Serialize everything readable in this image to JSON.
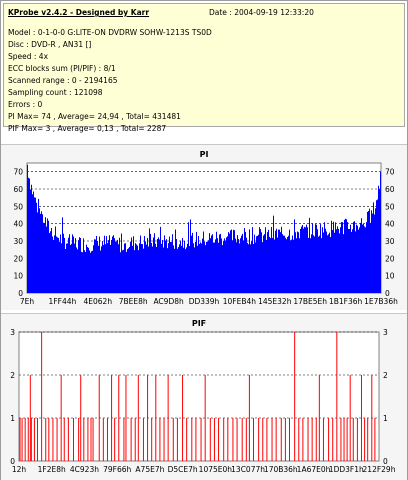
{
  "info": {
    "title": "KProbe v2.4.2 - Designed by Karr",
    "date": "Date : 2004-09-19 12:33:20",
    "lines": [
      "Model : 0-1-0-0 G:LITE-ON DVDRW SOHW-1213S TS0D",
      "Disc : DVD-R , AN31 []",
      "Speed : 4x",
      "ECC blocks sum (PI/PIF) : 8/1",
      "Scanned range : 0 - 2194165",
      "Sampling count : 121098",
      "Errors : 0",
      "PI Max= 74 , Average= 24,94 , Total= 431481",
      "PIF Max= 3 , Average= 0,13 , Total= 2287"
    ]
  },
  "colors": {
    "pi": "#0000ff",
    "pif": "#ff0000",
    "grid": "#000000",
    "plot_bg": "#ffffff",
    "panel_bg": "#f5f5f5"
  },
  "chart_data": [
    {
      "type": "area",
      "title": "PI",
      "ylim": [
        0,
        75
      ],
      "yticks": [
        0,
        10,
        20,
        30,
        40,
        50,
        60,
        70
      ],
      "xtick_labels": [
        "7Eh",
        "1FF44h",
        "4E062h",
        "7BEE8h",
        "AC9D8h",
        "DD339h",
        "10FEB4h",
        "145E32h",
        "17BE5Eh",
        "1B1F36h",
        "1E7B36h"
      ],
      "grid": true,
      "profile": [
        [
          0,
          74
        ],
        [
          2,
          66
        ],
        [
          5,
          58
        ],
        [
          9,
          50
        ],
        [
          14,
          44
        ],
        [
          19,
          38
        ],
        [
          25,
          34
        ],
        [
          31,
          31
        ],
        [
          40,
          29
        ],
        [
          55,
          28
        ],
        [
          70,
          29
        ],
        [
          85,
          28
        ],
        [
          100,
          29
        ],
        [
          120,
          30
        ],
        [
          140,
          30
        ],
        [
          160,
          31
        ],
        [
          180,
          32
        ],
        [
          200,
          33
        ],
        [
          215,
          33
        ],
        [
          230,
          34
        ],
        [
          245,
          35
        ],
        [
          260,
          36
        ],
        [
          275,
          37
        ],
        [
          290,
          38
        ],
        [
          300,
          39
        ],
        [
          310,
          41
        ],
        [
          316,
          45
        ],
        [
          320,
          52
        ],
        [
          323,
          62
        ],
        [
          324,
          68
        ]
      ],
      "summary": {
        "max": 74,
        "average": 24.94,
        "total": 431481
      }
    },
    {
      "type": "bar",
      "title": "PIF",
      "ylim": [
        0,
        3
      ],
      "yticks": [
        0,
        1,
        2,
        3
      ],
      "xtick_labels": [
        "12h",
        "1F2E8h",
        "4C923h",
        "79F66h",
        "A75E7h",
        "D5CE7h",
        "1075E0h",
        "13C077h",
        "170B36h",
        "1A67E0h",
        "1DD3F1h",
        "212F29h"
      ],
      "grid": true,
      "spikes": [
        {
          "x": 1,
          "value": 1
        },
        {
          "x": 3,
          "value": 1
        },
        {
          "x": 6,
          "value": 1
        },
        {
          "x": 9,
          "value": 1
        },
        {
          "x": 11,
          "value": 2
        },
        {
          "x": 12,
          "value": 1
        },
        {
          "x": 15,
          "value": 1
        },
        {
          "x": 18,
          "value": 1
        },
        {
          "x": 22,
          "value": 3
        },
        {
          "x": 26,
          "value": 1
        },
        {
          "x": 29,
          "value": 1
        },
        {
          "x": 33,
          "value": 1
        },
        {
          "x": 37,
          "value": 1
        },
        {
          "x": 41,
          "value": 2
        },
        {
          "x": 44,
          "value": 1
        },
        {
          "x": 48,
          "value": 1
        },
        {
          "x": 53,
          "value": 1
        },
        {
          "x": 58,
          "value": 1
        },
        {
          "x": 60,
          "value": 2
        },
        {
          "x": 63,
          "value": 1
        },
        {
          "x": 67,
          "value": 1
        },
        {
          "x": 70,
          "value": 1
        },
        {
          "x": 72,
          "value": 1
        },
        {
          "x": 78,
          "value": 2
        },
        {
          "x": 82,
          "value": 1
        },
        {
          "x": 86,
          "value": 1
        },
        {
          "x": 90,
          "value": 2
        },
        {
          "x": 93,
          "value": 1
        },
        {
          "x": 97,
          "value": 2
        },
        {
          "x": 102,
          "value": 1
        },
        {
          "x": 104,
          "value": 2
        },
        {
          "x": 109,
          "value": 1
        },
        {
          "x": 113,
          "value": 1
        },
        {
          "x": 116,
          "value": 2
        },
        {
          "x": 121,
          "value": 1
        },
        {
          "x": 125,
          "value": 2
        },
        {
          "x": 129,
          "value": 1
        },
        {
          "x": 133,
          "value": 2
        },
        {
          "x": 137,
          "value": 1
        },
        {
          "x": 141,
          "value": 1
        },
        {
          "x": 145,
          "value": 2
        },
        {
          "x": 150,
          "value": 1
        },
        {
          "x": 154,
          "value": 1
        },
        {
          "x": 159,
          "value": 2
        },
        {
          "x": 163,
          "value": 1
        },
        {
          "x": 168,
          "value": 1
        },
        {
          "x": 172,
          "value": 1
        },
        {
          "x": 177,
          "value": 1
        },
        {
          "x": 181,
          "value": 2
        },
        {
          "x": 186,
          "value": 1
        },
        {
          "x": 190,
          "value": 1
        },
        {
          "x": 194,
          "value": 1
        },
        {
          "x": 199,
          "value": 1
        },
        {
          "x": 203,
          "value": 1
        },
        {
          "x": 208,
          "value": 1
        },
        {
          "x": 212,
          "value": 1
        },
        {
          "x": 217,
          "value": 1
        },
        {
          "x": 221,
          "value": 1
        },
        {
          "x": 224,
          "value": 2
        },
        {
          "x": 228,
          "value": 1
        },
        {
          "x": 233,
          "value": 1
        },
        {
          "x": 237,
          "value": 1
        },
        {
          "x": 241,
          "value": 1
        },
        {
          "x": 246,
          "value": 1
        },
        {
          "x": 250,
          "value": 1
        },
        {
          "x": 255,
          "value": 1
        },
        {
          "x": 259,
          "value": 1
        },
        {
          "x": 263,
          "value": 1
        },
        {
          "x": 268,
          "value": 3
        },
        {
          "x": 272,
          "value": 1
        },
        {
          "x": 276,
          "value": 1
        },
        {
          "x": 281,
          "value": 1
        },
        {
          "x": 285,
          "value": 1
        },
        {
          "x": 289,
          "value": 1
        },
        {
          "x": 292,
          "value": 2
        },
        {
          "x": 296,
          "value": 1
        },
        {
          "x": 301,
          "value": 1
        },
        {
          "x": 305,
          "value": 1
        },
        {
          "x": 309,
          "value": 3
        },
        {
          "x": 313,
          "value": 1
        },
        {
          "x": 316,
          "value": 1
        },
        {
          "x": 319,
          "value": 1
        },
        {
          "x": 322,
          "value": 2
        },
        {
          "x": 325,
          "value": 1
        },
        {
          "x": 329,
          "value": 1
        },
        {
          "x": 333,
          "value": 2
        },
        {
          "x": 336,
          "value": 1
        },
        {
          "x": 339,
          "value": 1
        },
        {
          "x": 343,
          "value": 2
        },
        {
          "x": 346,
          "value": 1
        }
      ],
      "summary": {
        "max": 3,
        "average": 0.13,
        "total": 2287
      }
    }
  ]
}
